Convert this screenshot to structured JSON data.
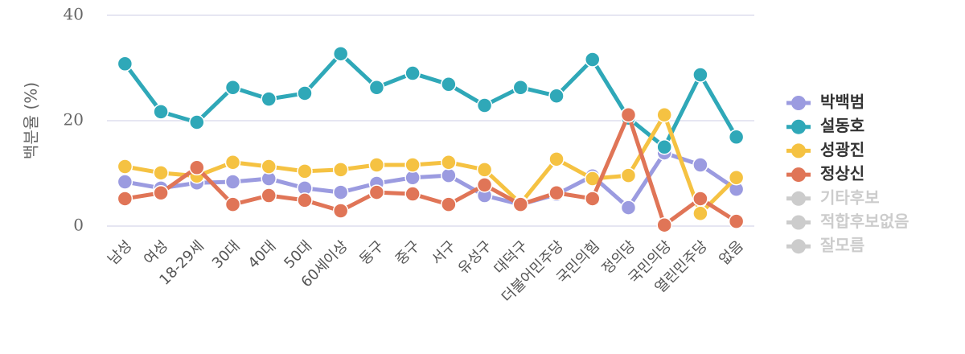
{
  "chart_data": {
    "type": "line",
    "y_label": "백분율 (%)",
    "categories": [
      "남성",
      "여성",
      "18-29세",
      "30대",
      "40대",
      "50대",
      "60세이상",
      "동구",
      "중구",
      "서구",
      "유성구",
      "대덕구",
      "더불어민주당",
      "국민의힘",
      "정의당",
      "국민의당",
      "열린민주당",
      "없음"
    ],
    "series": [
      {
        "name": "박백범",
        "color": "#9b9be0",
        "values": [
          8.4,
          7.2,
          8.2,
          8.4,
          9.0,
          7.2,
          6.4,
          8.1,
          9.2,
          9.6,
          5.8,
          4.1,
          6.0,
          9.5,
          3.5,
          13.9,
          11.6,
          7.0
        ]
      },
      {
        "name": "설동호",
        "color": "#2fa8b8",
        "values": [
          30.8,
          21.7,
          19.7,
          26.3,
          24.1,
          25.2,
          32.7,
          26.3,
          29.0,
          26.9,
          22.9,
          26.3,
          24.7,
          31.6,
          20.5,
          15.0,
          28.7,
          16.9
        ]
      },
      {
        "name": "성광진",
        "color": "#f5c242",
        "values": [
          11.3,
          10.1,
          9.5,
          12.1,
          11.3,
          10.4,
          10.7,
          11.6,
          11.6,
          12.1,
          10.7,
          4.3,
          12.7,
          9.0,
          9.6,
          21.1,
          2.4,
          9.2
        ]
      },
      {
        "name": "정상신",
        "color": "#e07557",
        "values": [
          5.2,
          6.3,
          11.1,
          4.1,
          5.8,
          4.9,
          2.9,
          6.4,
          6.1,
          4.1,
          7.8,
          4.1,
          6.3,
          5.2,
          21.1,
          0.2,
          5.2,
          0.9
        ]
      }
    ],
    "hidden_series": [
      {
        "name": "기타후보",
        "color": "#cccccc"
      },
      {
        "name": "적합후보없음",
        "color": "#cccccc"
      },
      {
        "name": "잘모름",
        "color": "#cccccc"
      }
    ],
    "ylim": [
      0,
      40
    ],
    "yticks": [
      0,
      20,
      40
    ],
    "grid": true,
    "legend": "right"
  }
}
